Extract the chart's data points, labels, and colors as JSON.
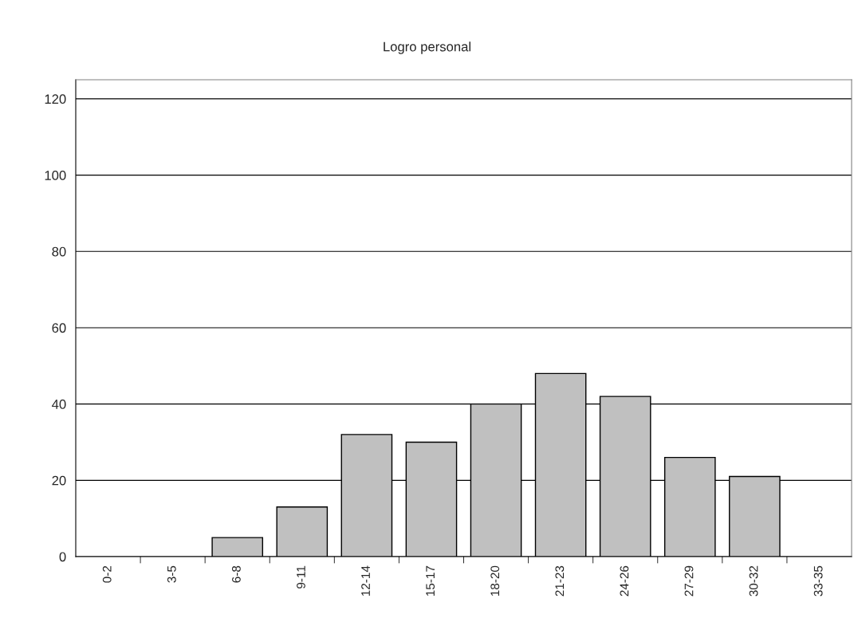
{
  "chart_data": {
    "type": "bar",
    "title": "Logro personal",
    "categories": [
      "0-2",
      "3-5",
      "6-8",
      "9-11",
      "12-14",
      "15-17",
      "18-20",
      "21-23",
      "24-26",
      "27-29",
      "30-32",
      "33-35"
    ],
    "values": [
      0,
      0,
      5,
      13,
      32,
      30,
      40,
      48,
      42,
      26,
      21,
      0
    ],
    "color": "#c0c0c0",
    "ylim": [
      0,
      125
    ],
    "yticks": [
      0,
      20,
      40,
      60,
      80,
      100,
      120
    ],
    "grid": "y",
    "legend": false
  }
}
